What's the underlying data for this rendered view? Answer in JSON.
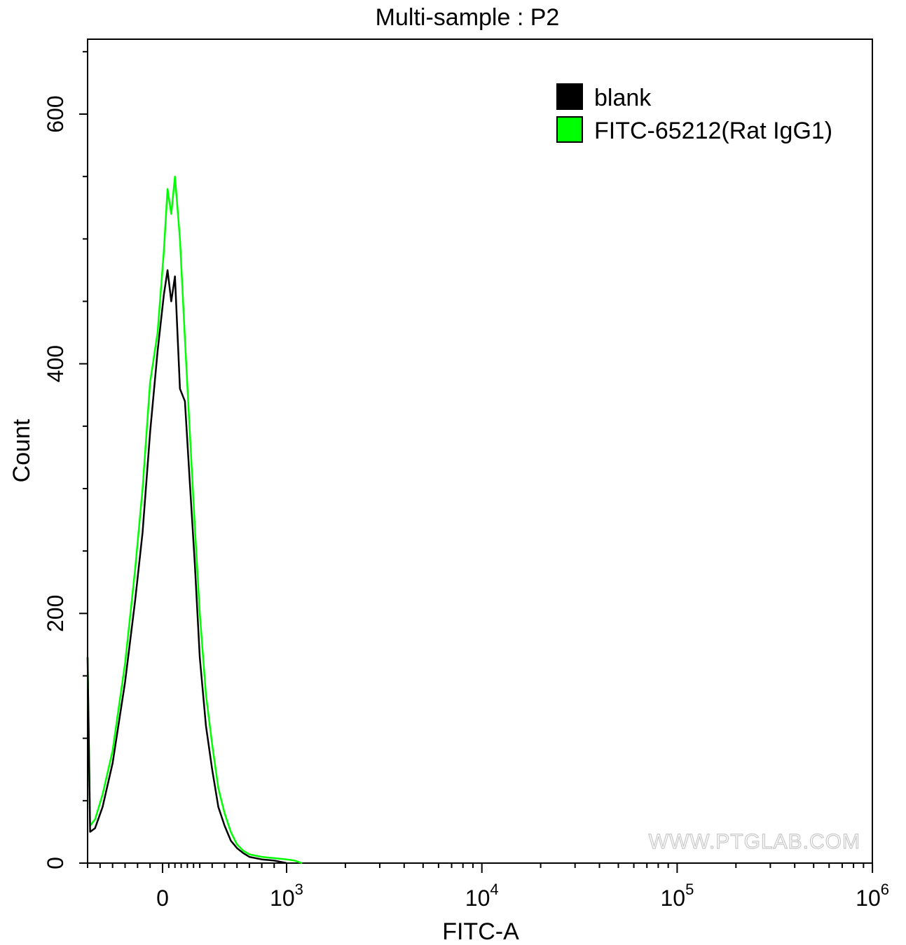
{
  "chart_data": {
    "type": "line",
    "title": "Multi-sample : P2",
    "xlabel": "FITC-A",
    "ylabel": "Count",
    "xscale": "biexponential",
    "xlim": [
      -300,
      1000000
    ],
    "ylim": [
      0,
      660
    ],
    "grid": false,
    "legend_position": "top-right",
    "x_ticks": [
      {
        "base": "0",
        "exp": ""
      },
      {
        "base": "10",
        "exp": "3"
      },
      {
        "base": "10",
        "exp": "4"
      },
      {
        "base": "10",
        "exp": "5"
      },
      {
        "base": "10",
        "exp": "6"
      }
    ],
    "y_ticks": [
      "0",
      "200",
      "400",
      "600"
    ],
    "watermark": "WWW.PTGLAB.COM",
    "series": [
      {
        "name": "blank",
        "color": "#000000",
        "x": [
          -300,
          -290,
          -270,
          -240,
          -200,
          -150,
          -110,
          -80,
          -50,
          -20,
          10,
          40,
          70,
          100,
          140,
          180,
          220,
          260,
          300,
          350,
          400,
          450,
          500,
          550,
          600,
          650,
          700,
          800,
          900,
          1000
        ],
        "y": [
          165,
          25,
          28,
          45,
          80,
          145,
          210,
          265,
          345,
          410,
          455,
          475,
          450,
          470,
          380,
          370,
          305,
          240,
          165,
          110,
          75,
          45,
          30,
          18,
          12,
          8,
          5,
          3,
          2,
          0
        ]
      },
      {
        "name": "FITC-65212(Rat IgG1)",
        "color": "#00ff00",
        "x": [
          -300,
          -290,
          -270,
          -240,
          -200,
          -150,
          -110,
          -80,
          -50,
          -20,
          10,
          40,
          70,
          100,
          140,
          180,
          220,
          260,
          300,
          350,
          400,
          450,
          500,
          550,
          600,
          650,
          700,
          800,
          900,
          1000,
          1100,
          1200
        ],
        "y": [
          165,
          30,
          35,
          55,
          90,
          160,
          235,
          300,
          385,
          425,
          490,
          540,
          520,
          550,
          500,
          420,
          345,
          270,
          200,
          135,
          95,
          60,
          40,
          25,
          15,
          10,
          7,
          5,
          4,
          3,
          2,
          0
        ]
      }
    ]
  }
}
